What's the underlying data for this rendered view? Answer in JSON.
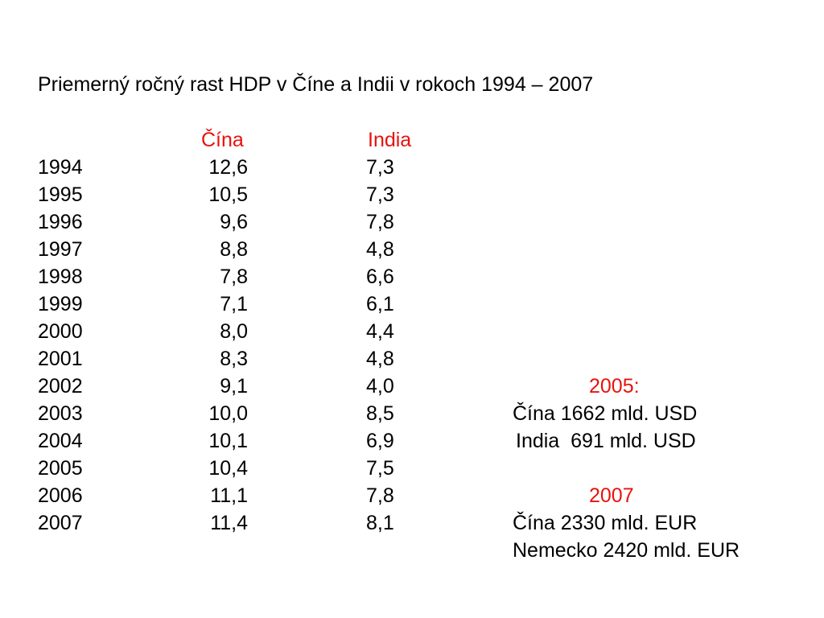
{
  "title": "Priemerný ročný rast HDP v Číne a Indii v rokoch 1994 – 2007",
  "headers": {
    "china": "Čína",
    "india": "India"
  },
  "rows": [
    {
      "year": "1994",
      "china": "12,6",
      "india": "7,3"
    },
    {
      "year": "1995",
      "china": "10,5",
      "india": "7,3"
    },
    {
      "year": "1996",
      "china": "9,6",
      "india": "7,8"
    },
    {
      "year": "1997",
      "china": "8,8",
      "india": "4,8"
    },
    {
      "year": "1998",
      "china": "7,8",
      "india": "6,6"
    },
    {
      "year": "1999",
      "china": "7,1",
      "india": "6,1"
    },
    {
      "year": "2000",
      "china": "8,0",
      "india": "4,4"
    },
    {
      "year": "2001",
      "china": "8,3",
      "india": "4,8"
    },
    {
      "year": "2002",
      "china": "9,1",
      "india": "4,0"
    },
    {
      "year": "2003",
      "china": "10,0",
      "india": "8,5"
    },
    {
      "year": "2004",
      "china": "10,1",
      "india": "6,9"
    },
    {
      "year": "2005",
      "china": "10,4",
      "india": "7,5"
    },
    {
      "year": "2006",
      "china": "11,1",
      "india": "7,8"
    },
    {
      "year": "2007",
      "china": "11,4",
      "india": "8,1"
    }
  ],
  "notes": {
    "year_2005_label": "2005:",
    "china_2005": "Čína 1662 mld. USD",
    "india_2005": "India  691 mld. USD",
    "year_2007_label": "2007",
    "china_2007": "Čína 2330 mld. EUR",
    "germany_2007": "Nemecko 2420 mld. EUR"
  },
  "colors": {
    "accent": "#e8120c",
    "text": "#000000",
    "background": "#ffffff"
  }
}
